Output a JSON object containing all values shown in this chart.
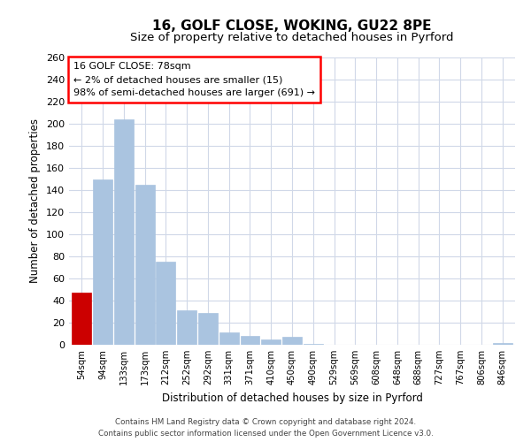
{
  "title": "16, GOLF CLOSE, WOKING, GU22 8PE",
  "subtitle": "Size of property relative to detached houses in Pyrford",
  "xlabel": "Distribution of detached houses by size in Pyrford",
  "ylabel": "Number of detached properties",
  "bar_labels": [
    "54sqm",
    "94sqm",
    "133sqm",
    "173sqm",
    "212sqm",
    "252sqm",
    "292sqm",
    "331sqm",
    "371sqm",
    "410sqm",
    "450sqm",
    "490sqm",
    "529sqm",
    "569sqm",
    "608sqm",
    "648sqm",
    "688sqm",
    "727sqm",
    "767sqm",
    "806sqm",
    "846sqm"
  ],
  "bar_values": [
    47,
    150,
    204,
    145,
    75,
    31,
    29,
    11,
    8,
    5,
    7,
    1,
    0,
    0,
    0,
    0,
    0,
    0,
    0,
    0,
    2
  ],
  "highlight_bar_index": 0,
  "bar_color_normal": "#aac4e0",
  "bar_color_highlight": "#cc0000",
  "ylim": [
    0,
    260
  ],
  "yticks": [
    0,
    20,
    40,
    60,
    80,
    100,
    120,
    140,
    160,
    180,
    200,
    220,
    240,
    260
  ],
  "annotation_title": "16 GOLF CLOSE: 78sqm",
  "annotation_line1": "← 2% of detached houses are smaller (15)",
  "annotation_line2": "98% of semi-detached houses are larger (691) →",
  "footer_line1": "Contains HM Land Registry data © Crown copyright and database right 2024.",
  "footer_line2": "Contains public sector information licensed under the Open Government Licence v3.0.",
  "background_color": "#ffffff",
  "grid_color": "#d0d8e8"
}
